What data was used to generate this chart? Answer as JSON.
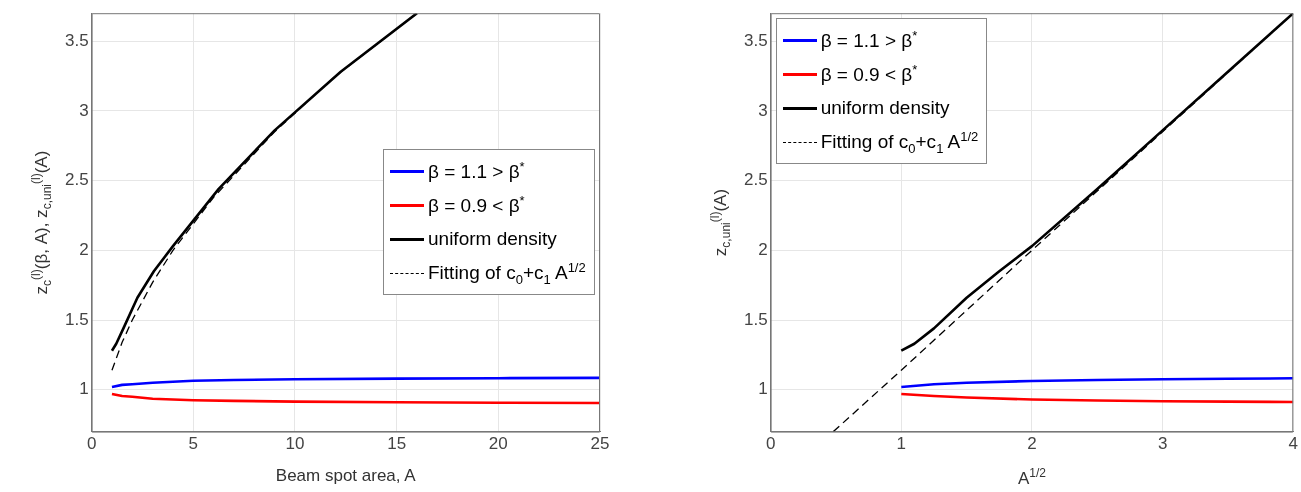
{
  "chart_data": [
    {
      "type": "line",
      "xlabel": "Beam spot area, A",
      "ylabel": "z$_{c}$$^{(l)}$(β, A),  z$_{c,uni}$$^{(l)}$(A)",
      "xlim": [
        0,
        25
      ],
      "xticks": [
        0,
        5,
        10,
        15,
        20,
        25
      ],
      "ylim": [
        0.7,
        3.7
      ],
      "yticks": [
        1,
        1.5,
        2,
        2.5,
        3,
        3.5
      ],
      "grid": true,
      "legend": "right",
      "series": [
        {
          "name": "β = 1.1 > β$^{*}$",
          "color": "#0000ff",
          "x": [
            1,
            1.5,
            2,
            3,
            5,
            7,
            10,
            15,
            20,
            25
          ],
          "values": [
            1.02,
            1.035,
            1.04,
            1.05,
            1.065,
            1.07,
            1.075,
            1.08,
            1.083,
            1.085
          ]
        },
        {
          "name": "β = 0.9 < β$^{*}$",
          "color": "#ff0000",
          "x": [
            1,
            1.5,
            2,
            3,
            5,
            7,
            10,
            15,
            20,
            25
          ],
          "values": [
            0.97,
            0.955,
            0.95,
            0.935,
            0.925,
            0.92,
            0.915,
            0.91,
            0.907,
            0.905
          ]
        },
        {
          "name": "uniform density",
          "color": "#000000",
          "x": [
            1,
            1.21,
            1.5625,
            2.25,
            3.06,
            4,
            6.25,
            9,
            12.25,
            16
          ],
          "values": [
            1.28,
            1.33,
            1.44,
            1.66,
            1.85,
            2.03,
            2.44,
            2.86,
            3.28,
            3.7
          ]
        },
        {
          "name": "Fitting of c$_{0}$+c$_{1}$ A$^{1/2}$",
          "color": "#000000",
          "line_style": "dashed",
          "x": [
            1,
            1.5,
            2,
            3,
            4,
            6,
            9,
            12,
            16
          ],
          "values": [
            1.14,
            1.34,
            1.5,
            1.77,
            2.0,
            2.38,
            2.85,
            3.25,
            3.7
          ]
        }
      ]
    },
    {
      "type": "line",
      "xlabel": "A$^{1/2}$",
      "ylabel": "z$_{c,uni}$$^{(l)}$(A)",
      "xlim": [
        0,
        4
      ],
      "xticks": [
        0,
        1,
        2,
        3,
        4
      ],
      "ylim": [
        0.7,
        3.7
      ],
      "yticks": [
        1,
        1.5,
        2,
        2.5,
        3,
        3.5
      ],
      "grid": true,
      "legend": "top left",
      "series": [
        {
          "name": "β = 1.1 > β$^{*}$",
          "color": "#0000ff",
          "x": [
            1,
            1.25,
            1.5,
            2,
            2.5,
            3,
            3.5,
            4
          ],
          "values": [
            1.02,
            1.04,
            1.05,
            1.063,
            1.07,
            1.075,
            1.079,
            1.082
          ]
        },
        {
          "name": "β = 0.9 < β$^{*}$",
          "color": "#ff0000",
          "x": [
            1,
            1.25,
            1.5,
            2,
            2.5,
            3,
            3.5,
            4
          ],
          "values": [
            0.97,
            0.955,
            0.945,
            0.93,
            0.923,
            0.918,
            0.915,
            0.912
          ]
        },
        {
          "name": "uniform density",
          "color": "#000000",
          "x": [
            1,
            1.1,
            1.25,
            1.5,
            1.75,
            2,
            2.5,
            3,
            3.5,
            4
          ],
          "values": [
            1.28,
            1.33,
            1.44,
            1.66,
            1.85,
            2.03,
            2.44,
            2.86,
            3.28,
            3.7
          ]
        },
        {
          "name": "Fitting of c$_{0}$+c$_{1}$ A$^{1/2}$",
          "color": "#000000",
          "line_style": "dashed",
          "x": [
            0.48,
            1,
            2,
            3,
            4
          ],
          "values": [
            0.7,
            1.14,
            2.0,
            2.85,
            3.7
          ]
        }
      ]
    }
  ]
}
